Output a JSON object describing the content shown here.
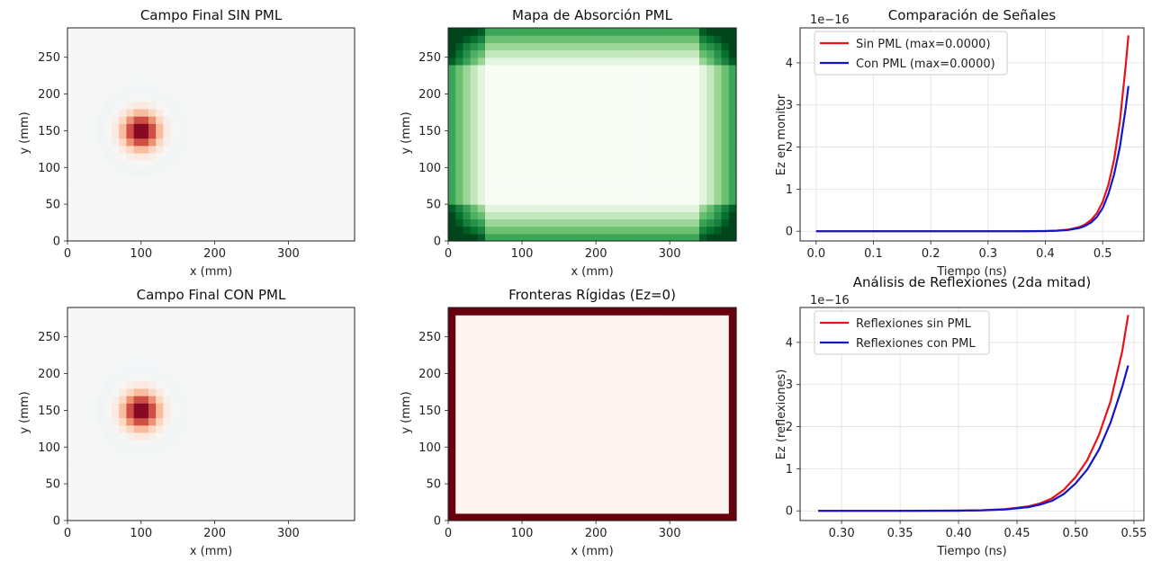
{
  "panels": {
    "p1": {
      "title": "Campo Final SIN PML",
      "xlabel": "x (mm)",
      "ylabel": "y (mm)"
    },
    "p2": {
      "title": "Mapa de Absorción PML",
      "xlabel": "x (mm)",
      "ylabel": "y (mm)"
    },
    "p3": {
      "title": "Comparación de Señales",
      "xlabel": "Tiempo (ns)",
      "ylabel": "Ez en monitor",
      "offset": "1e−16",
      "legend": [
        "Sin PML (max=0.0000)",
        "Con PML (max=0.0000)"
      ]
    },
    "p4": {
      "title": "Campo Final CON PML",
      "xlabel": "x (mm)",
      "ylabel": "y (mm)"
    },
    "p5": {
      "title": "Fronteras Rígidas (Ez=0)",
      "xlabel": "x (mm)",
      "ylabel": "y (mm)"
    },
    "p6": {
      "title": "Análisis de Reflexiones (2da mitad)",
      "xlabel": "Tiempo (ns)",
      "ylabel": "Ez (reflexiones)",
      "offset": "1e−16",
      "legend": [
        "Reflexiones sin PML",
        "Reflexiones con PML"
      ]
    }
  },
  "colors": {
    "red_series": "#e8121b",
    "blue_series": "#1515c8",
    "pml_light": "#a1d99b",
    "pml_mid": "#41ab5d",
    "pml_dark": "#00441b",
    "pml_interior": "#f7fcf5",
    "boundary_dark": "#67000d",
    "boundary_interior": "#fff5f0",
    "field_peak": "#67001f"
  },
  "chart_data": [
    {
      "type": "heatmap",
      "panel": "p1",
      "title": "Campo Final SIN PML",
      "xlabel": "x (mm)",
      "ylabel": "y (mm)",
      "xlim": [
        0,
        390
      ],
      "ylim": [
        0,
        290
      ],
      "xticks": [
        0,
        100,
        200,
        300
      ],
      "yticks": [
        0,
        50,
        100,
        150,
        200,
        250
      ],
      "cell_size": 10,
      "pulse": {
        "center_x": 100,
        "center_y": 150,
        "sigma": 24,
        "peak": 1.0
      },
      "colormap": "RdBu_r"
    },
    {
      "type": "heatmap",
      "panel": "p2",
      "title": "Mapa de Absorción PML",
      "xlabel": "x (mm)",
      "ylabel": "y (mm)",
      "xlim": [
        0,
        390
      ],
      "ylim": [
        0,
        290
      ],
      "xticks": [
        0,
        100,
        200,
        300
      ],
      "yticks": [
        0,
        50,
        100,
        150,
        200,
        250
      ],
      "cell_size": 10,
      "pml_layers": 5,
      "colormap": "Greens"
    },
    {
      "type": "line",
      "panel": "p3",
      "title": "Comparación de Señales",
      "xlabel": "Tiempo (ns)",
      "ylabel": "Ez en monitor",
      "xlim": [
        -0.028,
        0.572
      ],
      "ylim": [
        -0.23,
        4.83
      ],
      "xticks": [
        0.0,
        0.1,
        0.2,
        0.3,
        0.4,
        0.5
      ],
      "yticks": [
        0,
        1,
        2,
        3,
        4
      ],
      "y_scale_note": "1e-16",
      "grid": true,
      "legend_position": "top-left",
      "series": [
        {
          "name": "Sin PML (max=0.0000)",
          "x": [
            0.0,
            0.1,
            0.2,
            0.3,
            0.35,
            0.4,
            0.42,
            0.44,
            0.46,
            0.47,
            0.48,
            0.49,
            0.5,
            0.51,
            0.52,
            0.53,
            0.54,
            0.545
          ],
          "y": [
            0,
            0,
            0,
            0,
            0,
            0.005,
            0.015,
            0.04,
            0.1,
            0.17,
            0.27,
            0.43,
            0.7,
            1.1,
            1.7,
            2.6,
            3.9,
            4.65
          ]
        },
        {
          "name": "Con PML (max=0.0000)",
          "x": [
            0.0,
            0.1,
            0.2,
            0.3,
            0.35,
            0.4,
            0.42,
            0.44,
            0.46,
            0.47,
            0.48,
            0.49,
            0.5,
            0.51,
            0.52,
            0.53,
            0.54,
            0.545
          ],
          "y": [
            0,
            0,
            0,
            0,
            0,
            0.004,
            0.012,
            0.03,
            0.08,
            0.13,
            0.21,
            0.34,
            0.55,
            0.88,
            1.35,
            2.0,
            2.9,
            3.45
          ]
        }
      ]
    },
    {
      "type": "heatmap",
      "panel": "p4",
      "title": "Campo Final CON PML",
      "xlabel": "x (mm)",
      "ylabel": "y (mm)",
      "xlim": [
        0,
        390
      ],
      "ylim": [
        0,
        290
      ],
      "xticks": [
        0,
        100,
        200,
        300
      ],
      "yticks": [
        0,
        50,
        100,
        150,
        200,
        250
      ],
      "cell_size": 10,
      "pulse": {
        "center_x": 100,
        "center_y": 150,
        "sigma": 24,
        "peak": 1.0
      },
      "colormap": "RdBu_r"
    },
    {
      "type": "heatmap",
      "panel": "p5",
      "title": "Fronteras Rígidas (Ez=0)",
      "xlabel": "x (mm)",
      "ylabel": "y (mm)",
      "xlim": [
        0,
        390
      ],
      "ylim": [
        0,
        290
      ],
      "xticks": [
        0,
        100,
        200,
        300
      ],
      "yticks": [
        0,
        50,
        100,
        150,
        200,
        250
      ],
      "cell_size": 10,
      "boundary_cells": 1,
      "colormap": "Reds"
    },
    {
      "type": "line",
      "panel": "p6",
      "title": "Análisis de Reflexiones (2da mitad)",
      "xlabel": "Tiempo (ns)",
      "ylabel": "Ez (reflexiones)",
      "xlim": [
        0.2645,
        0.5585
      ],
      "ylim": [
        -0.23,
        4.83
      ],
      "xticks": [
        0.3,
        0.35,
        0.4,
        0.45,
        0.5,
        0.55
      ],
      "yticks": [
        0,
        1,
        2,
        3,
        4
      ],
      "y_scale_note": "1e-16",
      "grid": true,
      "legend_position": "top-left",
      "series": [
        {
          "name": "Reflexiones sin PML",
          "x": [
            0.28,
            0.3,
            0.35,
            0.4,
            0.42,
            0.44,
            0.45,
            0.46,
            0.47,
            0.48,
            0.49,
            0.5,
            0.51,
            0.52,
            0.53,
            0.54,
            0.545
          ],
          "y": [
            0,
            0,
            0,
            0.005,
            0.015,
            0.04,
            0.07,
            0.11,
            0.18,
            0.3,
            0.5,
            0.8,
            1.2,
            1.8,
            2.6,
            3.8,
            4.65
          ]
        },
        {
          "name": "Reflexiones con PML",
          "x": [
            0.28,
            0.3,
            0.35,
            0.4,
            0.42,
            0.44,
            0.45,
            0.46,
            0.47,
            0.48,
            0.49,
            0.5,
            0.51,
            0.52,
            0.53,
            0.54,
            0.545
          ],
          "y": [
            0,
            0,
            0,
            0.004,
            0.012,
            0.035,
            0.06,
            0.09,
            0.15,
            0.24,
            0.4,
            0.65,
            0.98,
            1.45,
            2.1,
            2.95,
            3.45
          ]
        }
      ]
    }
  ]
}
